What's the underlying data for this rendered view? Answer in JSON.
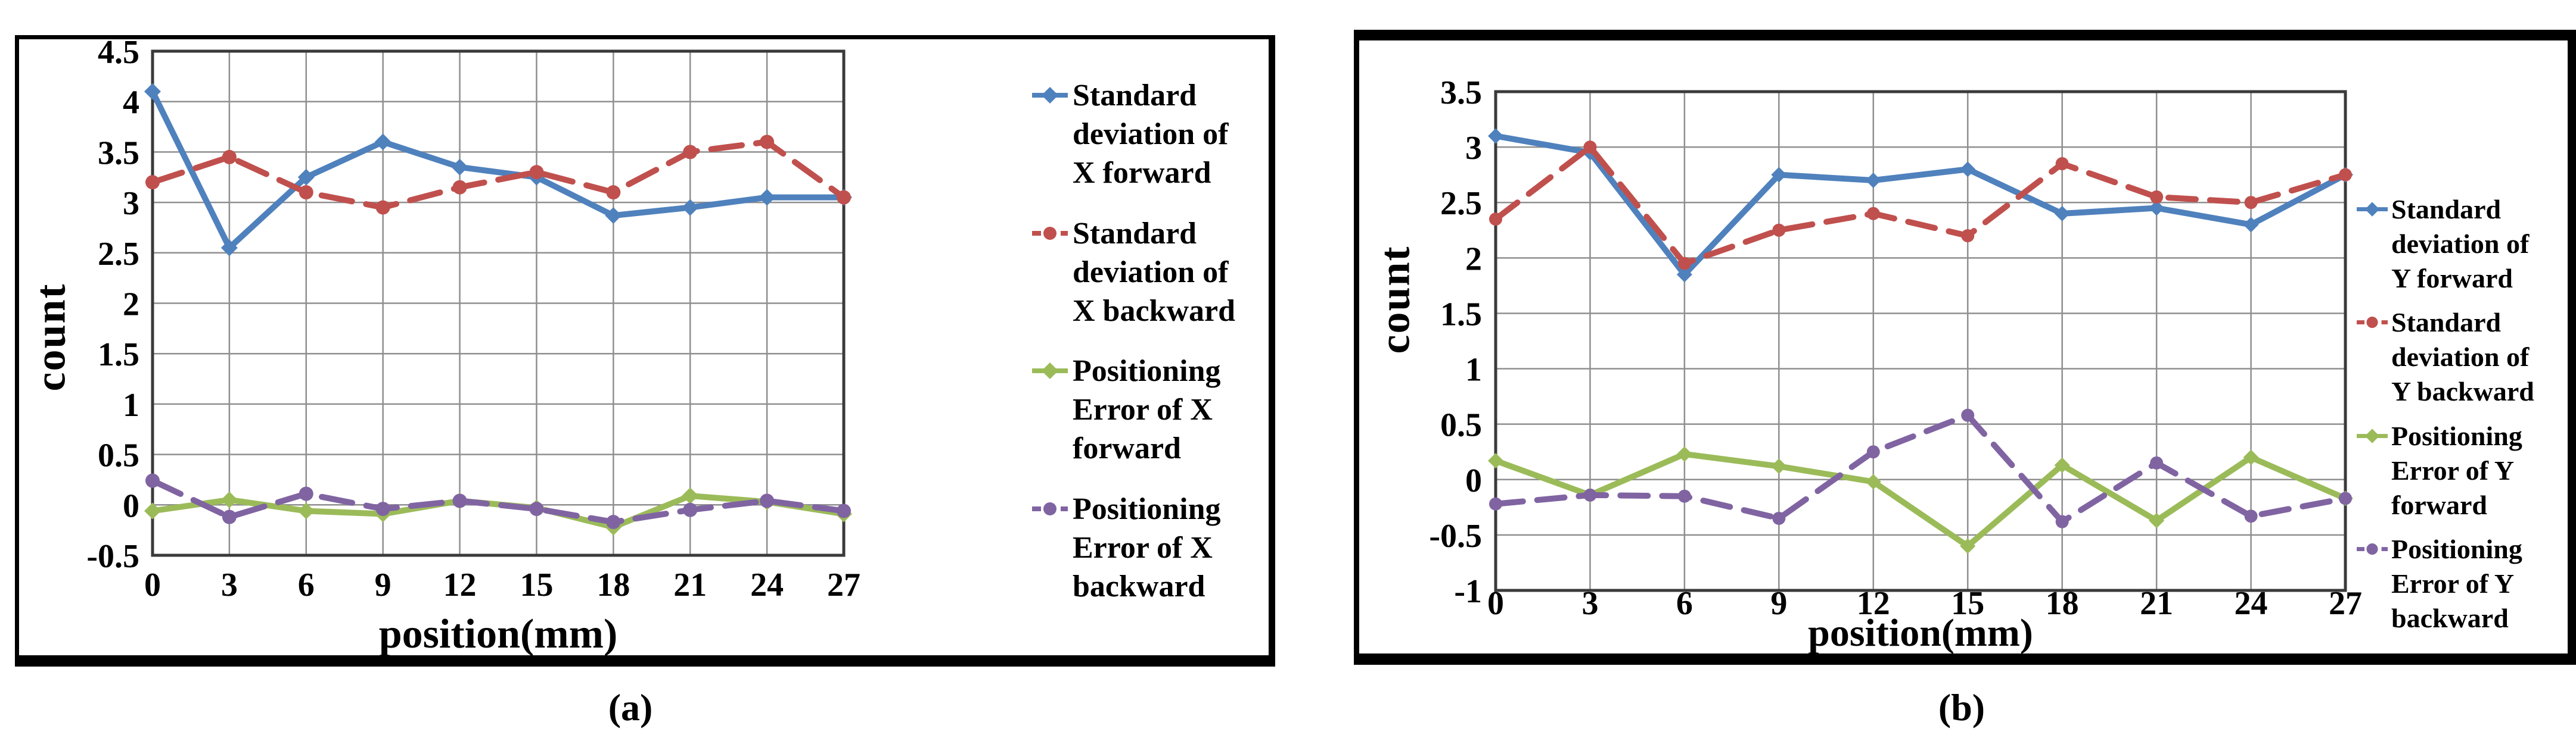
{
  "captions": {
    "a": "(a)",
    "b": "(b)"
  },
  "chart_data": [
    {
      "id": "a",
      "type": "line",
      "caption": "(a)",
      "title": "",
      "xlabel": "position(mm)",
      "ylabel": "count",
      "x_categories": [
        "0",
        "3",
        "6",
        "9",
        "12",
        "15",
        "18",
        "21",
        "24",
        "27"
      ],
      "ylim": [
        -0.5,
        4.5
      ],
      "ytick_labels": [
        "4.5",
        "4",
        "3.5",
        "3",
        "2.5",
        "2",
        "1.5",
        "1",
        "0.5",
        "0",
        "-0.5"
      ],
      "grid": true,
      "legend_position": "right",
      "series": [
        {
          "name": "Standard deviation of X forward",
          "legend_lines": [
            "Standard",
            "deviation of",
            "X forward"
          ],
          "color": "#4F81BD",
          "style": "solid",
          "marker": "diamond",
          "values": [
            4.1,
            2.55,
            3.25,
            3.6,
            3.35,
            3.25,
            2.87,
            2.95,
            3.05,
            3.05
          ]
        },
        {
          "name": "Standard deviation of X backward",
          "legend_lines": [
            "Standard",
            "deviation of",
            "X backward"
          ],
          "color": "#C0504D",
          "style": "dashed",
          "marker": "circle",
          "values": [
            3.2,
            3.45,
            3.1,
            2.95,
            3.15,
            3.3,
            3.1,
            3.5,
            3.6,
            3.05
          ]
        },
        {
          "name": "Positioning Error of X forward",
          "legend_lines": [
            "Positioning",
            "Error of X",
            "forward"
          ],
          "color": "#9BBB59",
          "style": "solid",
          "marker": "diamond",
          "values": [
            -0.06,
            0.05,
            -0.06,
            -0.09,
            0.04,
            -0.03,
            -0.22,
            0.09,
            0.03,
            -0.09
          ]
        },
        {
          "name": "Positioning Error of X backward",
          "legend_lines": [
            "Positioning",
            "Error of X",
            "backward"
          ],
          "color": "#8064A2",
          "style": "dashed",
          "marker": "circle",
          "values": [
            0.24,
            -0.12,
            0.11,
            -0.04,
            0.04,
            -0.04,
            -0.17,
            -0.05,
            0.04,
            -0.06
          ]
        }
      ]
    },
    {
      "id": "b",
      "type": "line",
      "caption": "(b)",
      "title": "",
      "xlabel": "position(mm)",
      "ylabel": "count",
      "x_categories": [
        "0",
        "3",
        "6",
        "9",
        "12",
        "15",
        "18",
        "21",
        "24",
        "27"
      ],
      "ylim": [
        -1,
        3.5
      ],
      "ytick_labels": [
        "3.5",
        "3",
        "2.5",
        "2",
        "1.5",
        "1",
        "0.5",
        "0",
        "-0.5",
        "-1"
      ],
      "grid": true,
      "legend_position": "right",
      "series": [
        {
          "name": "Standard deviation of Y forward",
          "legend_lines": [
            "Standard",
            "deviation of",
            "Y forward"
          ],
          "color": "#4F81BD",
          "style": "solid",
          "marker": "diamond",
          "values": [
            3.1,
            2.95,
            1.85,
            2.75,
            2.7,
            2.8,
            2.4,
            2.45,
            2.3,
            2.75
          ]
        },
        {
          "name": "Standard deviation of Y backward",
          "legend_lines": [
            "Standard",
            "deviation of",
            "Y backward"
          ],
          "color": "#C0504D",
          "style": "dashed",
          "marker": "circle",
          "values": [
            2.35,
            3.0,
            1.95,
            2.25,
            2.4,
            2.2,
            2.85,
            2.55,
            2.5,
            2.75
          ]
        },
        {
          "name": "Positioning Error of Y forward",
          "legend_lines": [
            "Positioning",
            "Error of Y",
            "forward"
          ],
          "color": "#9BBB59",
          "style": "solid",
          "marker": "diamond",
          "values": [
            0.17,
            -0.14,
            0.23,
            0.12,
            -0.02,
            -0.6,
            0.13,
            -0.37,
            0.2,
            -0.17
          ]
        },
        {
          "name": "Positioning Error of Y backward",
          "legend_lines": [
            "Positioning",
            "Error of Y",
            "backward"
          ],
          "color": "#8064A2",
          "style": "dashed",
          "marker": "circle",
          "values": [
            -0.22,
            -0.14,
            -0.15,
            -0.35,
            0.25,
            0.58,
            -0.38,
            0.15,
            -0.33,
            -0.17
          ]
        }
      ]
    }
  ]
}
